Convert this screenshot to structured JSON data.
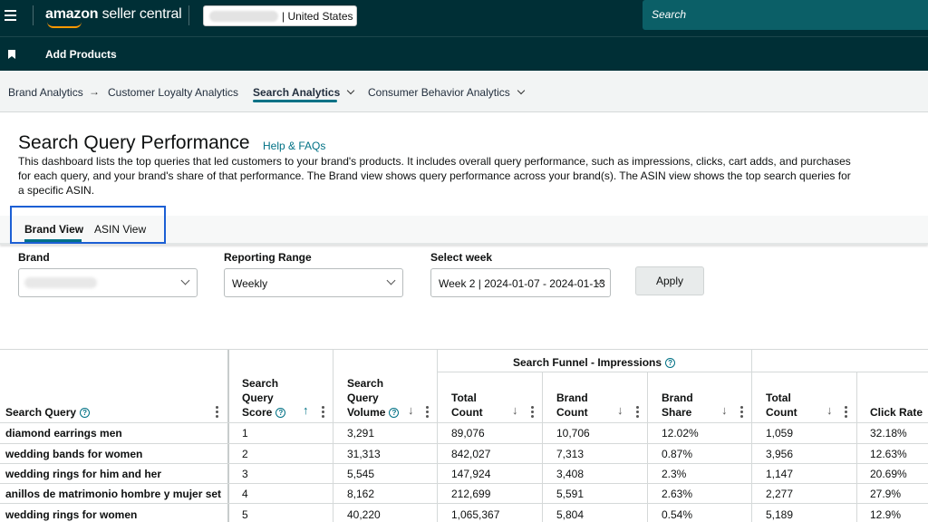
{
  "header": {
    "logo_brand": "amazon",
    "logo_product": "seller central",
    "store_label": "| United States",
    "search_placeholder": "Search"
  },
  "bar2": {
    "add_products": "Add Products"
  },
  "subnav": {
    "brand_analytics": "Brand Analytics",
    "customer_loyalty": "Customer Loyalty Analytics",
    "search_analytics": "Search Analytics",
    "consumer_behavior": "Consumer Behavior Analytics"
  },
  "page": {
    "title": "Search Query Performance",
    "help": "Help & FAQs",
    "description": "This dashboard lists the top queries that led customers to your brand's products. It includes overall query performance, such as impressions, clicks, cart adds, and purchases for each query, and your brand's share of that performance. The Brand view shows query performance across your brand(s). The ASIN view shows the top search queries for a specific ASIN."
  },
  "views": {
    "brand": "Brand View",
    "asin": "ASIN View"
  },
  "filters": {
    "brand_label": "Brand",
    "range_label": "Reporting Range",
    "range_value": "Weekly",
    "week_label": "Select week",
    "week_value": "Week 2 | 2024-01-07 - 2024-01-13",
    "apply": "Apply"
  },
  "table": {
    "group_impressions": "Search Funnel - Impressions",
    "col_query": "Search Query",
    "col_score": [
      "Search",
      "Query",
      "Score"
    ],
    "col_volume": [
      "Search",
      "Query",
      "Volume"
    ],
    "col_total": [
      "Total",
      "Count"
    ],
    "col_brand_count": [
      "Brand",
      "Count"
    ],
    "col_brand_share": [
      "Brand",
      "Share"
    ],
    "col_total2": [
      "Total",
      "Count"
    ],
    "col_click_rate": "Click Rate",
    "rows": [
      {
        "query": "diamond earrings men",
        "score": "1",
        "volume": "3,291",
        "total": "89,076",
        "brand": "10,706",
        "share": "12.02%",
        "total2": "1,059",
        "rate": "32.18%"
      },
      {
        "query": "wedding bands for women",
        "score": "2",
        "volume": "31,313",
        "total": "842,027",
        "brand": "7,313",
        "share": "0.87%",
        "total2": "3,956",
        "rate": "12.63%"
      },
      {
        "query": "wedding rings for him and her",
        "score": "3",
        "volume": "5,545",
        "total": "147,924",
        "brand": "3,408",
        "share": "2.3%",
        "total2": "1,147",
        "rate": "20.69%"
      },
      {
        "query": "anillos de matrimonio hombre y mujer set",
        "score": "4",
        "volume": "8,162",
        "total": "212,699",
        "brand": "5,591",
        "share": "2.63%",
        "total2": "2,277",
        "rate": "27.9%"
      },
      {
        "query": "wedding rings for women",
        "score": "5",
        "volume": "40,220",
        "total": "1,065,367",
        "brand": "5,804",
        "share": "0.54%",
        "total2": "5,189",
        "rate": "12.9%"
      }
    ]
  }
}
